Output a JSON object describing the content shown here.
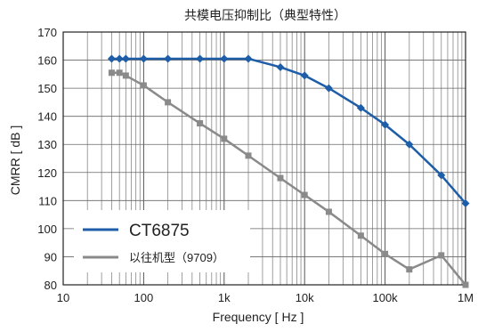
{
  "chart_data": {
    "type": "line",
    "title": "共模电压抑制比（典型特性）",
    "xlabel": "Frequency [ Hz ]",
    "ylabel": "CMRR [ dB ]",
    "x_scale": "log",
    "xlim": [
      10,
      1000000
    ],
    "ylim": [
      80,
      170
    ],
    "grid": true,
    "legend_position": "bottom-left",
    "x_ticks": [
      {
        "value": 10,
        "label": "10"
      },
      {
        "value": 100,
        "label": "100"
      },
      {
        "value": 1000,
        "label": "1k"
      },
      {
        "value": 10000,
        "label": "10k"
      },
      {
        "value": 100000,
        "label": "100k"
      },
      {
        "value": 1000000,
        "label": "1M"
      }
    ],
    "y_ticks": [
      {
        "value": 80,
        "label": "80"
      },
      {
        "value": 90,
        "label": "90"
      },
      {
        "value": 100,
        "label": "100"
      },
      {
        "value": 110,
        "label": "110"
      },
      {
        "value": 120,
        "label": "120"
      },
      {
        "value": 130,
        "label": "130"
      },
      {
        "value": 140,
        "label": "140"
      },
      {
        "value": 150,
        "label": "150"
      },
      {
        "value": 160,
        "label": "160"
      },
      {
        "value": 170,
        "label": "170"
      }
    ],
    "series": [
      {
        "name": "CT6875",
        "color": "#1e5da8",
        "marker": "diamond",
        "x": [
          40,
          50,
          60,
          100,
          200,
          500,
          1000,
          2000,
          5000,
          10000,
          20000,
          50000,
          100000,
          200000,
          500000,
          1000000
        ],
        "y": [
          160.5,
          160.5,
          160.5,
          160.5,
          160.5,
          160.5,
          160.5,
          160.5,
          157.5,
          154.5,
          150,
          143,
          137,
          130,
          119,
          109
        ]
      },
      {
        "name": "以往机型（9709）",
        "color": "#8a8a8a",
        "marker": "square",
        "x": [
          40,
          50,
          60,
          100,
          200,
          500,
          1000,
          2000,
          5000,
          10000,
          20000,
          50000,
          100000,
          200000,
          500000,
          1000000
        ],
        "y": [
          155.5,
          155.5,
          154.5,
          151,
          145,
          137.5,
          132,
          126,
          118,
          112,
          106,
          97.5,
          91,
          85.5,
          90.5,
          80
        ]
      }
    ]
  }
}
